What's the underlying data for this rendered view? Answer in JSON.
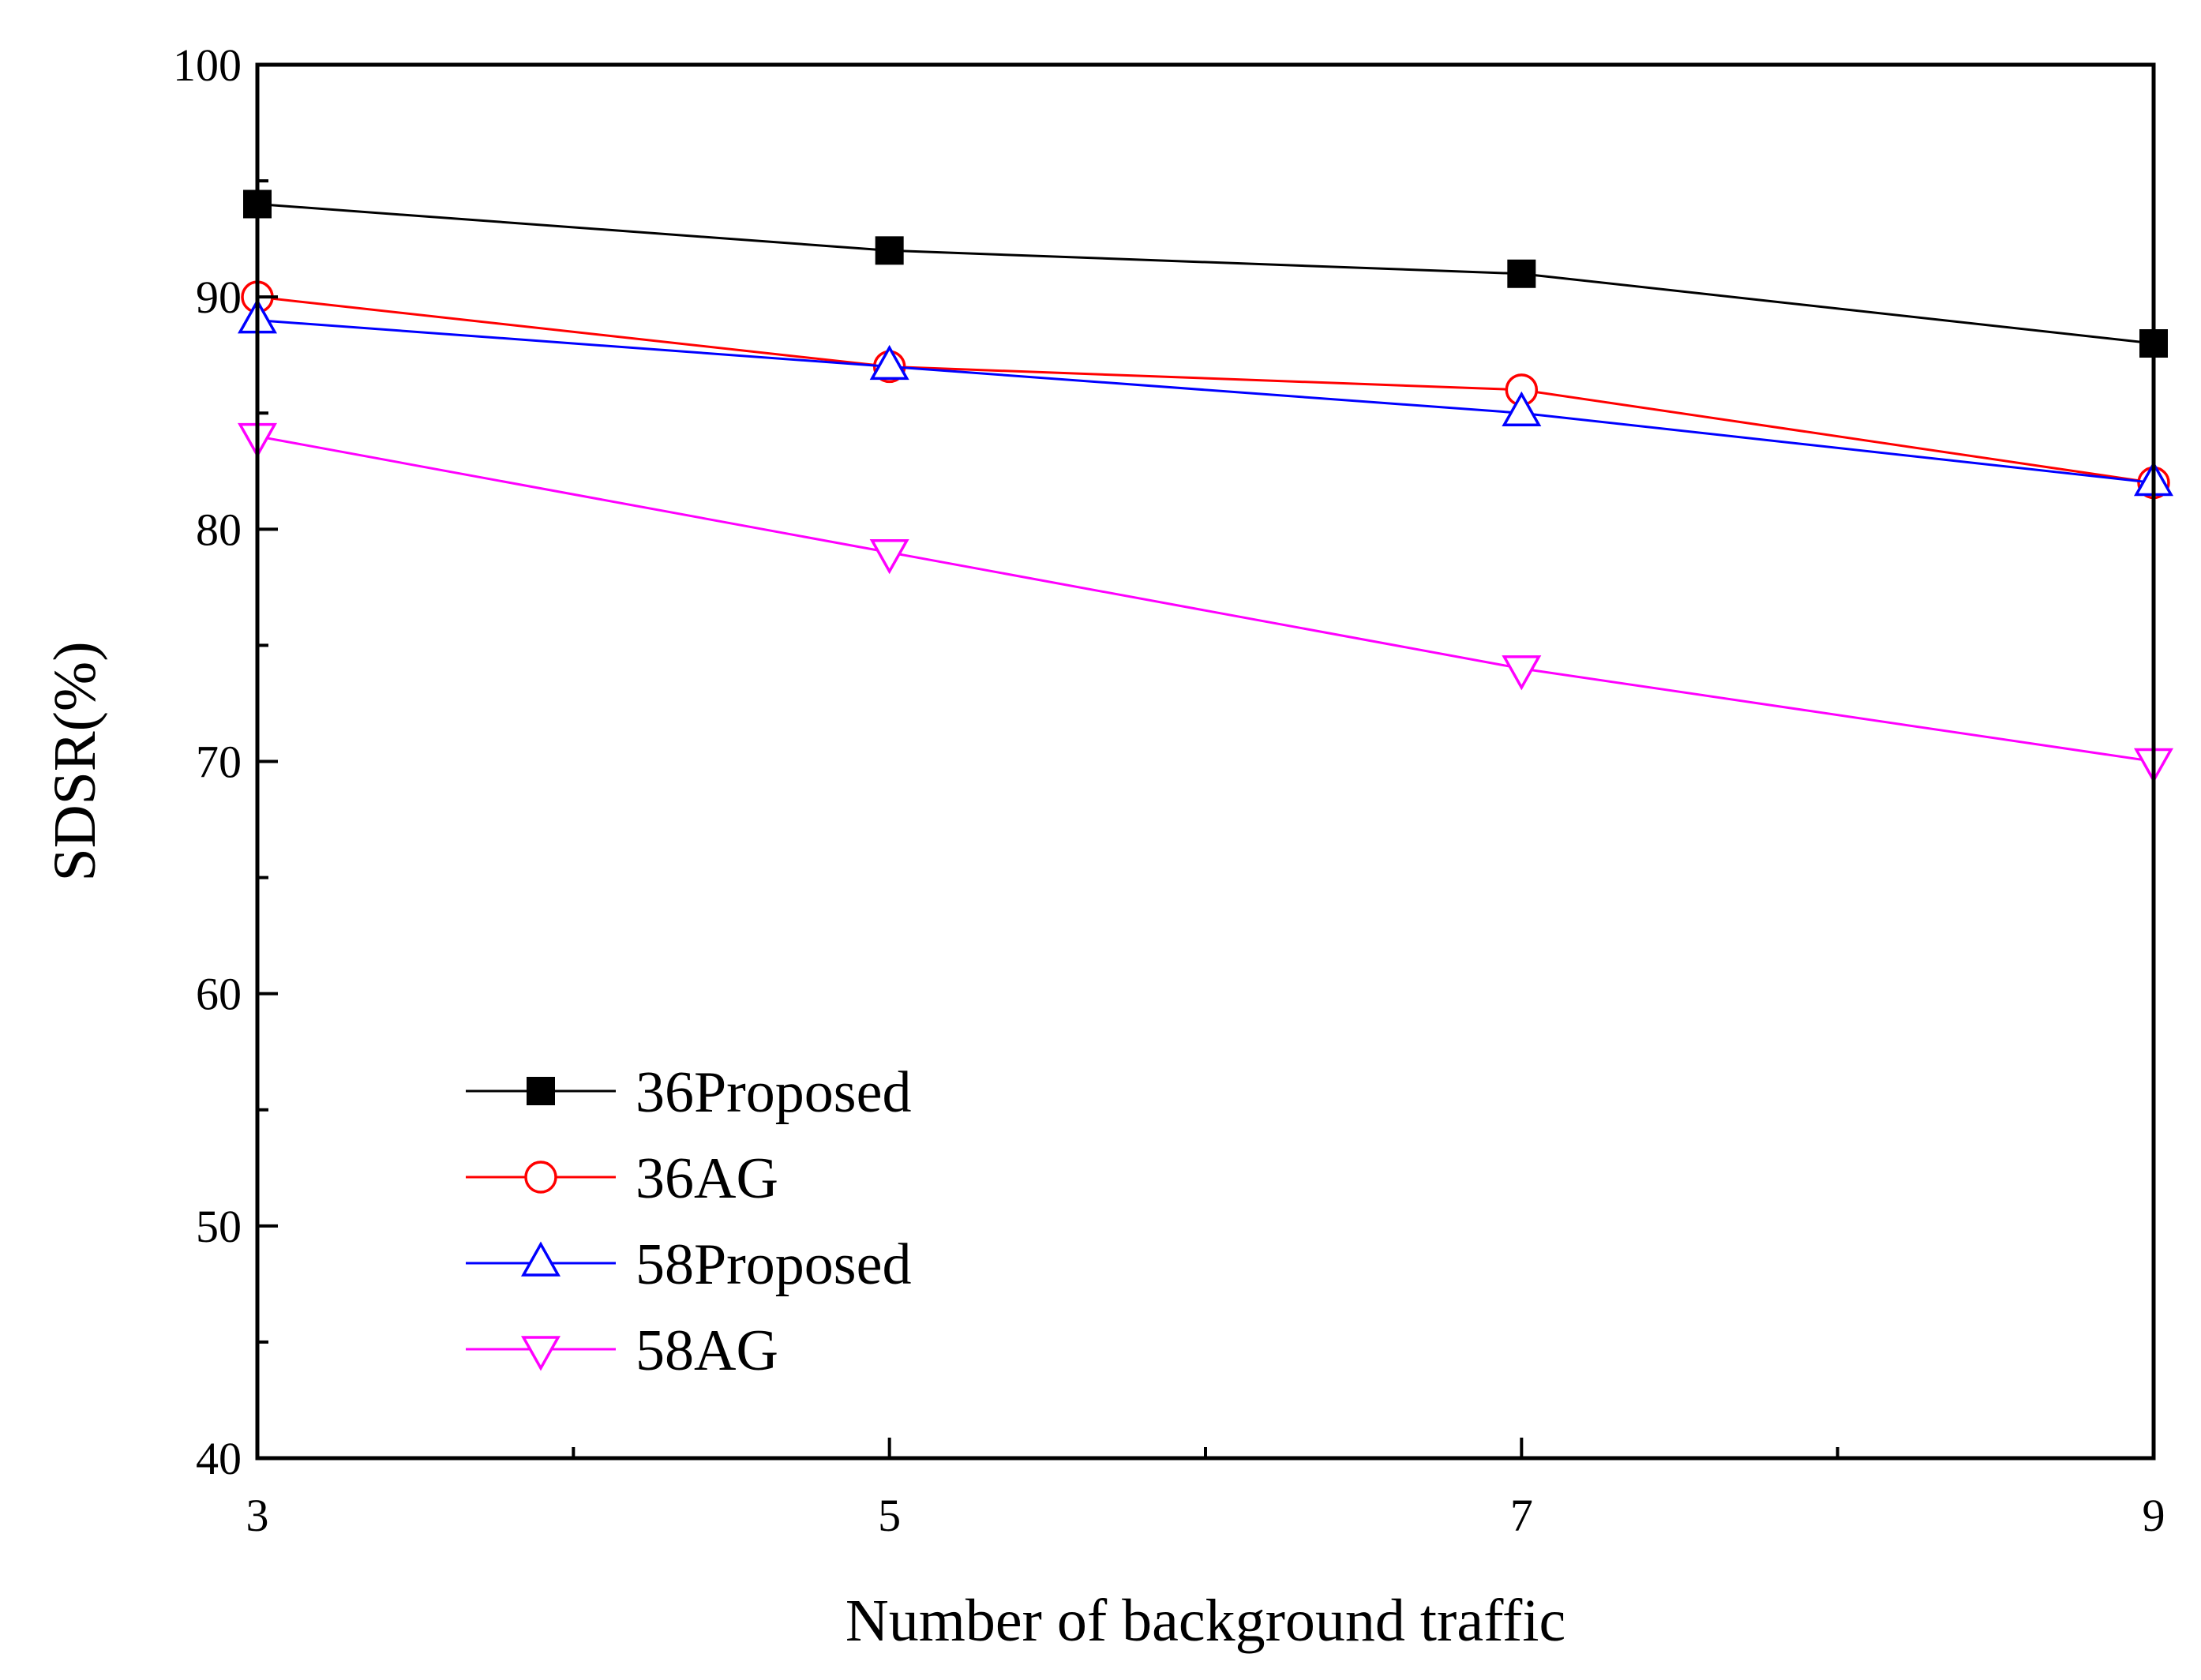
{
  "chart_data": {
    "type": "line",
    "title": "",
    "xlabel": "Number of background traffic",
    "ylabel": "SDSR(%)",
    "x": [
      3,
      5,
      7,
      9
    ],
    "xlim": [
      3,
      9
    ],
    "ylim": [
      40,
      100
    ],
    "x_major_ticks": [
      3,
      5,
      7,
      9
    ],
    "x_minor_ticks": [
      4,
      6,
      8
    ],
    "y_major_ticks": [
      40,
      50,
      60,
      70,
      80,
      90,
      100
    ],
    "y_minor_ticks": [
      45,
      55,
      65,
      75,
      85,
      95
    ],
    "x_tick_labels": [
      "3",
      "5",
      "7",
      "9"
    ],
    "y_tick_labels": [
      "40",
      "50",
      "60",
      "70",
      "80",
      "90",
      "100"
    ],
    "grid": false,
    "legend_position": "bottom-left",
    "series": [
      {
        "name": "36Proposed",
        "values": [
          94,
          92,
          91,
          88
        ],
        "color": "#000000",
        "marker": "filled-square"
      },
      {
        "name": "36AG",
        "values": [
          90,
          87,
          86,
          82
        ],
        "color": "#ff0000",
        "marker": "open-circle"
      },
      {
        "name": "58Proposed",
        "values": [
          89,
          87,
          85,
          82
        ],
        "color": "#0000ff",
        "marker": "open-triangle-up"
      },
      {
        "name": "58AG",
        "values": [
          84,
          79,
          74,
          70
        ],
        "color": "#ff00ff",
        "marker": "open-triangle-down"
      }
    ]
  }
}
